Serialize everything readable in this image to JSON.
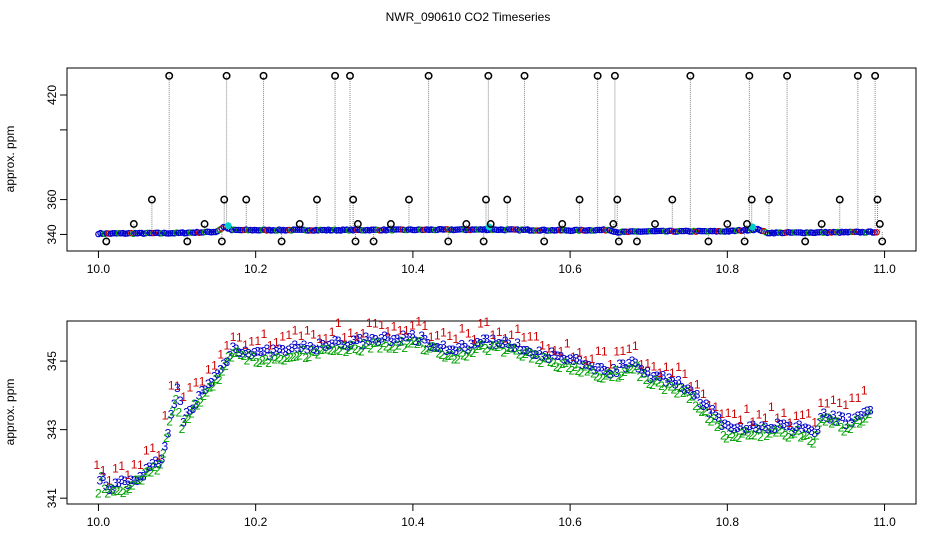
{
  "chart_data": [
    {
      "type": "scatter",
      "title": "NWR_090610  CO2 Timeseries",
      "xlabel": "",
      "ylabel": "approx. ppm",
      "xlim": [
        9.96,
        11.04
      ],
      "ylim": [
        330.5,
        435.5
      ],
      "x_ticks": [
        10.0,
        10.2,
        10.4,
        10.6,
        10.8,
        11.0
      ],
      "x_tick_labels": [
        "10.0",
        "10.2",
        "10.4",
        "10.6",
        "10.8",
        "11.0"
      ],
      "y_ticks": [
        340,
        360,
        420
      ],
      "y_tick_labels": [
        "340",
        "360",
        "420"
      ],
      "y_ticks_unlabeled": [
        400
      ],
      "colors": {
        "series": "#0000cc",
        "flag": "#000000",
        "line": "#888888",
        "red": "#cc0000",
        "green": "#00a000",
        "cyan": "#00cccc"
      },
      "base": {
        "x": [
          10.0,
          10.1,
          10.15,
          10.16,
          10.17,
          10.3,
          10.5,
          10.6,
          10.65,
          10.66,
          10.7,
          10.8,
          10.84,
          10.85,
          10.99
        ],
        "y": [
          340.5,
          340.8,
          341.5,
          344.5,
          342.5,
          342.5,
          342.8,
          342.3,
          342.6,
          341.3,
          341.8,
          341.8,
          343.0,
          340.9,
          341.4
        ]
      },
      "spikes": [
        {
          "x": 10.01,
          "y": 336
        },
        {
          "x": 10.045,
          "y": 346
        },
        {
          "x": 10.068,
          "y": 360
        },
        {
          "x": 10.09,
          "y": 431
        },
        {
          "x": 10.113,
          "y": 336
        },
        {
          "x": 10.135,
          "y": 346
        },
        {
          "x": 10.157,
          "y": 336
        },
        {
          "x": 10.16,
          "y": 360
        },
        {
          "x": 10.163,
          "y": 431
        },
        {
          "x": 10.188,
          "y": 360
        },
        {
          "x": 10.21,
          "y": 431
        },
        {
          "x": 10.233,
          "y": 336
        },
        {
          "x": 10.256,
          "y": 346
        },
        {
          "x": 10.278,
          "y": 360
        },
        {
          "x": 10.301,
          "y": 431
        },
        {
          "x": 10.32,
          "y": 431
        },
        {
          "x": 10.324,
          "y": 360
        },
        {
          "x": 10.327,
          "y": 336
        },
        {
          "x": 10.33,
          "y": 346
        },
        {
          "x": 10.35,
          "y": 336
        },
        {
          "x": 10.372,
          "y": 346
        },
        {
          "x": 10.395,
          "y": 360
        },
        {
          "x": 10.42,
          "y": 431
        },
        {
          "x": 10.445,
          "y": 336
        },
        {
          "x": 10.468,
          "y": 346
        },
        {
          "x": 10.49,
          "y": 336
        },
        {
          "x": 10.493,
          "y": 360
        },
        {
          "x": 10.496,
          "y": 431
        },
        {
          "x": 10.499,
          "y": 346
        },
        {
          "x": 10.52,
          "y": 360
        },
        {
          "x": 10.542,
          "y": 431
        },
        {
          "x": 10.567,
          "y": 336
        },
        {
          "x": 10.59,
          "y": 346
        },
        {
          "x": 10.612,
          "y": 360
        },
        {
          "x": 10.635,
          "y": 431
        },
        {
          "x": 10.655,
          "y": 346
        },
        {
          "x": 10.657,
          "y": 431
        },
        {
          "x": 10.66,
          "y": 360
        },
        {
          "x": 10.662,
          "y": 336
        },
        {
          "x": 10.685,
          "y": 336
        },
        {
          "x": 10.708,
          "y": 346
        },
        {
          "x": 10.73,
          "y": 360
        },
        {
          "x": 10.753,
          "y": 431
        },
        {
          "x": 10.776,
          "y": 336
        },
        {
          "x": 10.8,
          "y": 346
        },
        {
          "x": 10.822,
          "y": 336
        },
        {
          "x": 10.825,
          "y": 346
        },
        {
          "x": 10.828,
          "y": 431
        },
        {
          "x": 10.831,
          "y": 360
        },
        {
          "x": 10.853,
          "y": 360
        },
        {
          "x": 10.876,
          "y": 431
        },
        {
          "x": 10.899,
          "y": 336
        },
        {
          "x": 10.92,
          "y": 346
        },
        {
          "x": 10.943,
          "y": 360
        },
        {
          "x": 10.966,
          "y": 431
        },
        {
          "x": 10.988,
          "y": 431
        },
        {
          "x": 10.991,
          "y": 360
        },
        {
          "x": 10.994,
          "y": 346
        },
        {
          "x": 10.997,
          "y": 336
        }
      ]
    },
    {
      "type": "scatter",
      "title": "",
      "xlabel": "",
      "ylabel": "approx. ppm",
      "xlim": [
        9.96,
        11.04
      ],
      "ylim": [
        340.83,
        346.17
      ],
      "x_ticks": [
        10.0,
        10.2,
        10.4,
        10.6,
        10.8,
        11.0
      ],
      "x_tick_labels": [
        "10.0",
        "10.2",
        "10.4",
        "10.6",
        "10.8",
        "11.0"
      ],
      "y_ticks": [
        341,
        343,
        345
      ],
      "y_tick_labels": [
        "341",
        "343",
        "345"
      ],
      "series": [
        {
          "name": "1",
          "label": "1",
          "color": "#cc0000"
        },
        {
          "name": "2",
          "label": "2",
          "color": "#00a000"
        },
        {
          "name": "3",
          "label": "3",
          "color": "#0000cc"
        }
      ],
      "trend": {
        "x": [
          10.0,
          10.003,
          10.01,
          10.04,
          10.08,
          10.09,
          10.1,
          10.105,
          10.12,
          10.15,
          10.17,
          10.2,
          10.3,
          10.4,
          10.45,
          10.5,
          10.55,
          10.6,
          10.65,
          10.68,
          10.7,
          10.75,
          10.8,
          10.85,
          10.9,
          10.91,
          10.92,
          10.95,
          10.98
        ],
        "y": [
          341.4,
          341.8,
          341.3,
          341.5,
          342.1,
          343.3,
          344.3,
          343.2,
          343.8,
          344.6,
          345.4,
          345.2,
          345.5,
          345.7,
          345.3,
          345.6,
          345.3,
          345.0,
          344.7,
          345.0,
          344.6,
          344.2,
          343.0,
          343.1,
          343.0,
          342.8,
          343.5,
          343.2,
          343.6
        ]
      }
    }
  ]
}
